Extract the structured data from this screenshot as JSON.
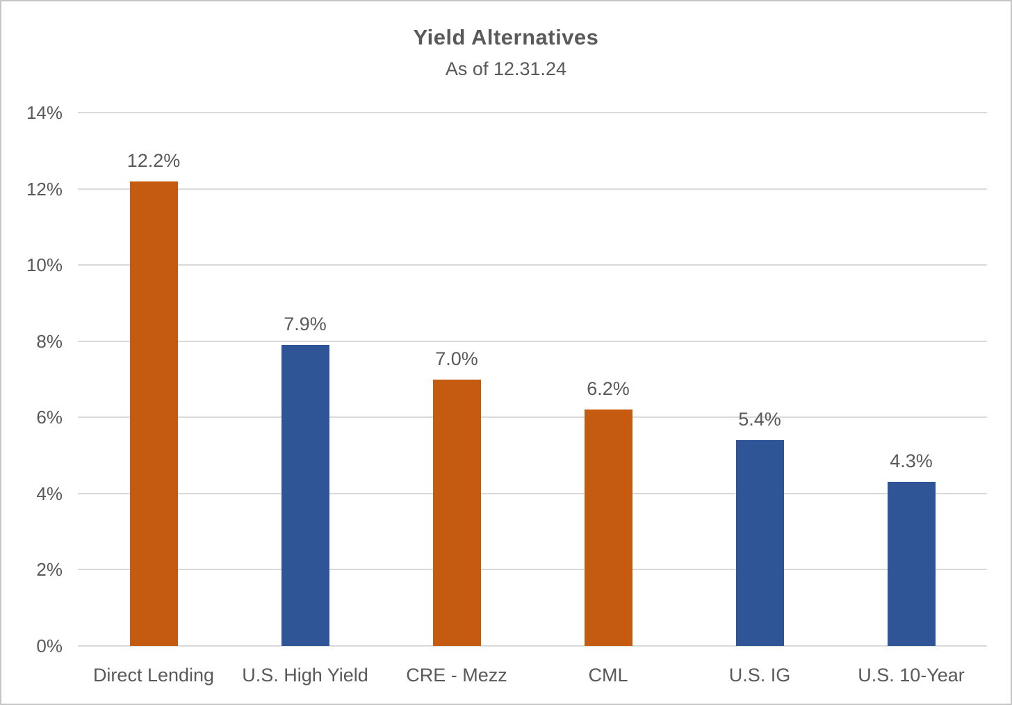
{
  "chart": {
    "title": "Yield Alternatives",
    "subtitle": "As of 12.31.24"
  },
  "chart_data": {
    "type": "bar",
    "title": "Yield Alternatives",
    "subtitle": "As of 12.31.24",
    "categories": [
      "Direct Lending",
      "U.S. High Yield",
      "CRE - Mezz",
      "CML",
      "U.S. IG",
      "U.S. 10-Year"
    ],
    "values": [
      12.2,
      7.9,
      7.0,
      6.2,
      5.4,
      4.3
    ],
    "value_labels": [
      "12.2%",
      "7.9%",
      "7.0%",
      "6.2%",
      "5.4%",
      "4.3%"
    ],
    "bar_colors": [
      "#C55A11",
      "#2F5597",
      "#C55A11",
      "#C55A11",
      "#2F5597",
      "#2F5597"
    ],
    "xlabel": "",
    "ylabel": "",
    "ylim": [
      0,
      14
    ],
    "ytick_step": 2,
    "ytick_labels": [
      "0%",
      "2%",
      "4%",
      "6%",
      "8%",
      "10%",
      "12%",
      "14%"
    ],
    "grid": true,
    "legend": false,
    "colors": {
      "orange_bar": "#C55A11",
      "blue_bar": "#2F5597",
      "text": "#595959",
      "gridline": "#D9D9D9",
      "frame_border": "#C6C6C6",
      "background": "#FFFFFF"
    }
  }
}
